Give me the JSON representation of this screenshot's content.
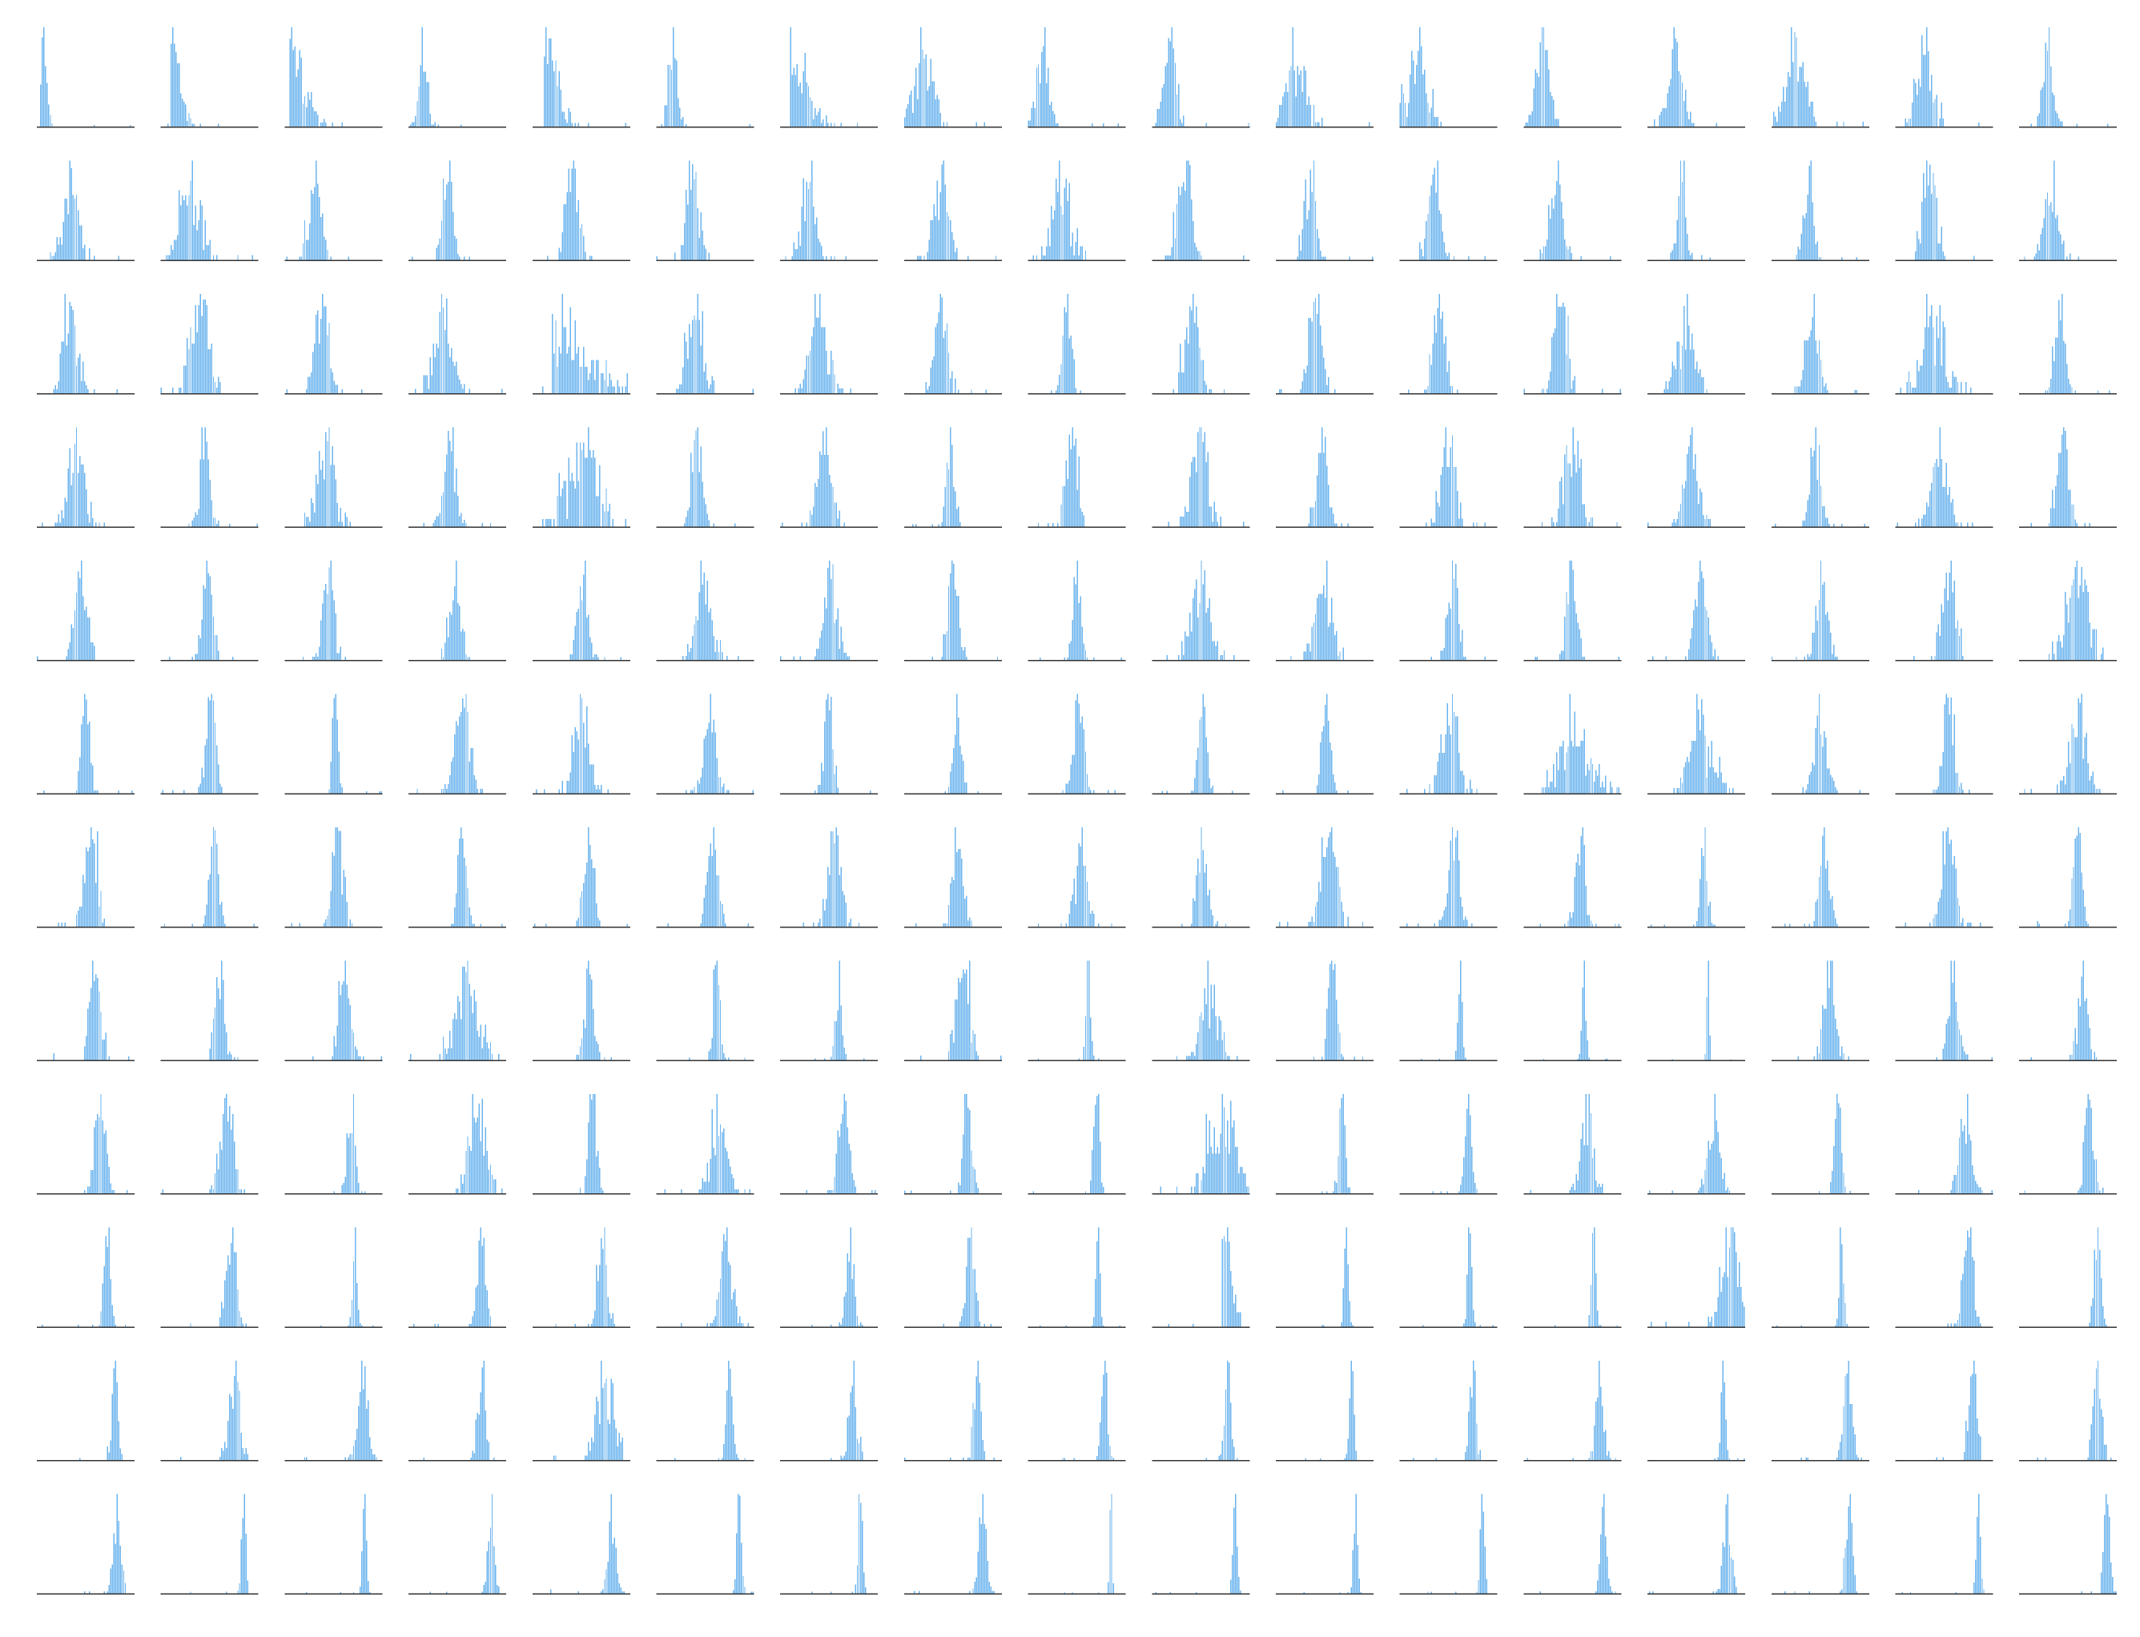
{
  "chart_data": {
    "type": "bar",
    "description_kind": "small-multiples histogram grid",
    "rows": 12,
    "cols": 17,
    "bin_count": 60,
    "x_range": [
      0,
      1
    ],
    "axes_visible": false,
    "tick_labels": false,
    "grid": false,
    "legend": "none",
    "title": "",
    "xlabel": "",
    "ylabel": "",
    "colors": {
      "bar": "#6cb4ee",
      "baseline": "#333333",
      "background": "#ffffff"
    },
    "row_centers": [
      [
        0.04,
        0.1,
        0.05,
        0.15,
        0.12,
        0.17,
        0.1,
        0.2,
        0.15,
        0.18,
        0.2,
        0.18,
        0.2,
        0.28,
        0.25,
        0.3,
        0.3
      ],
      [
        0.35,
        0.3,
        0.32,
        0.4,
        0.4,
        0.38,
        0.3,
        0.38,
        0.35,
        0.33,
        0.35,
        0.35,
        0.33,
        0.35,
        0.38,
        0.35,
        0.33
      ],
      [
        0.35,
        0.4,
        0.38,
        0.35,
        0.2,
        0.4,
        0.4,
        0.38,
        0.4,
        0.42,
        0.4,
        0.4,
        0.38,
        0.4,
        0.42,
        0.4,
        0.42
      ],
      [
        0.4,
        0.45,
        0.42,
        0.42,
        0.5,
        0.42,
        0.45,
        0.48,
        0.45,
        0.48,
        0.48,
        0.5,
        0.5,
        0.45,
        0.45,
        0.45,
        0.45
      ],
      [
        0.45,
        0.48,
        0.45,
        0.48,
        0.52,
        0.5,
        0.52,
        0.5,
        0.5,
        0.5,
        0.48,
        0.55,
        0.5,
        0.55,
        0.52,
        0.55,
        0.58
      ],
      [
        0.5,
        0.52,
        0.52,
        0.55,
        0.5,
        0.55,
        0.5,
        0.55,
        0.52,
        0.52,
        0.52,
        0.52,
        0.55,
        0.55,
        0.5,
        0.55,
        0.6
      ],
      [
        0.55,
        0.55,
        0.55,
        0.55,
        0.58,
        0.58,
        0.55,
        0.55,
        0.55,
        0.52,
        0.55,
        0.55,
        0.58,
        0.58,
        0.55,
        0.55,
        0.6
      ],
      [
        0.6,
        0.6,
        0.62,
        0.6,
        0.58,
        0.62,
        0.6,
        0.6,
        0.62,
        0.6,
        0.58,
        0.62,
        0.62,
        0.62,
        0.6,
        0.6,
        0.65
      ],
      [
        0.65,
        0.68,
        0.68,
        0.7,
        0.62,
        0.65,
        0.65,
        0.65,
        0.7,
        0.72,
        0.68,
        0.7,
        0.65,
        0.68,
        0.68,
        0.72,
        0.72
      ],
      [
        0.72,
        0.72,
        0.72,
        0.75,
        0.72,
        0.72,
        0.72,
        0.68,
        0.72,
        0.72,
        0.72,
        0.72,
        0.72,
        0.85,
        0.72,
        0.75,
        0.8
      ],
      [
        0.8,
        0.75,
        0.8,
        0.75,
        0.75,
        0.75,
        0.75,
        0.75,
        0.78,
        0.78,
        0.78,
        0.75,
        0.78,
        0.78,
        0.78,
        0.8,
        0.8
      ],
      [
        0.82,
        0.85,
        0.82,
        0.85,
        0.82,
        0.85,
        0.82,
        0.8,
        0.85,
        0.85,
        0.82,
        0.85,
        0.82,
        0.82,
        0.8,
        0.85,
        0.9
      ]
    ],
    "row_spreads": [
      [
        0.03,
        0.05,
        0.08,
        0.04,
        0.07,
        0.04,
        0.1,
        0.1,
        0.06,
        0.06,
        0.1,
        0.1,
        0.06,
        0.07,
        0.09,
        0.07,
        0.05
      ],
      [
        0.08,
        0.1,
        0.06,
        0.05,
        0.06,
        0.06,
        0.07,
        0.07,
        0.09,
        0.07,
        0.05,
        0.06,
        0.06,
        0.04,
        0.05,
        0.06,
        0.07
      ],
      [
        0.07,
        0.08,
        0.07,
        0.09,
        0.2,
        0.07,
        0.09,
        0.06,
        0.04,
        0.07,
        0.06,
        0.06,
        0.06,
        0.09,
        0.06,
        0.12,
        0.05
      ],
      [
        0.08,
        0.05,
        0.08,
        0.06,
        0.15,
        0.05,
        0.07,
        0.04,
        0.05,
        0.08,
        0.06,
        0.07,
        0.08,
        0.07,
        0.05,
        0.08,
        0.06
      ],
      [
        0.06,
        0.05,
        0.05,
        0.06,
        0.05,
        0.08,
        0.06,
        0.05,
        0.04,
        0.09,
        0.08,
        0.05,
        0.05,
        0.06,
        0.06,
        0.06,
        0.1
      ],
      [
        0.04,
        0.05,
        0.03,
        0.07,
        0.07,
        0.06,
        0.04,
        0.04,
        0.05,
        0.04,
        0.04,
        0.08,
        0.15,
        0.1,
        0.06,
        0.05,
        0.08
      ],
      [
        0.06,
        0.04,
        0.05,
        0.04,
        0.05,
        0.05,
        0.06,
        0.05,
        0.06,
        0.06,
        0.07,
        0.05,
        0.05,
        0.03,
        0.05,
        0.06,
        0.04
      ],
      [
        0.05,
        0.05,
        0.05,
        0.1,
        0.04,
        0.03,
        0.03,
        0.06,
        0.02,
        0.08,
        0.04,
        0.02,
        0.02,
        0.01,
        0.05,
        0.05,
        0.05
      ],
      [
        0.05,
        0.06,
        0.04,
        0.08,
        0.04,
        0.08,
        0.05,
        0.04,
        0.03,
        0.12,
        0.03,
        0.03,
        0.06,
        0.06,
        0.03,
        0.06,
        0.04
      ],
      [
        0.03,
        0.05,
        0.02,
        0.04,
        0.04,
        0.06,
        0.04,
        0.04,
        0.02,
        0.05,
        0.02,
        0.02,
        0.02,
        0.08,
        0.02,
        0.05,
        0.03
      ],
      [
        0.03,
        0.05,
        0.05,
        0.04,
        0.08,
        0.03,
        0.04,
        0.03,
        0.03,
        0.03,
        0.02,
        0.03,
        0.04,
        0.02,
        0.04,
        0.04,
        0.04
      ],
      [
        0.04,
        0.02,
        0.02,
        0.03,
        0.04,
        0.02,
        0.02,
        0.04,
        0.01,
        0.02,
        0.02,
        0.02,
        0.03,
        0.04,
        0.03,
        0.02,
        0.03
      ]
    ],
    "skewed_cells": [
      [
        0,
        0
      ],
      [
        0,
        1
      ],
      [
        0,
        2
      ],
      [
        0,
        4
      ],
      [
        0,
        6
      ],
      [
        2,
        4
      ],
      [
        9,
        9
      ]
    ]
  }
}
